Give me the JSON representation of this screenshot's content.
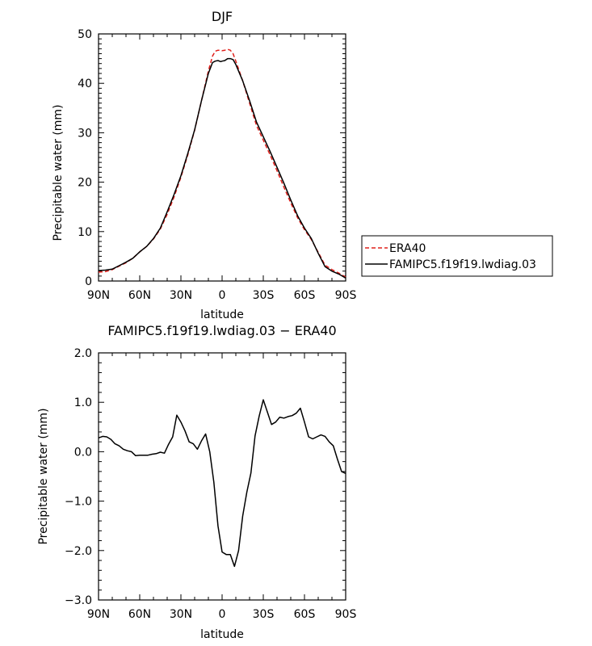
{
  "chart_data": [
    {
      "type": "line",
      "title": "DJF",
      "xlabel": "latitude",
      "ylabel": "Precipitable water (mm)",
      "xlim": [
        90,
        -90
      ],
      "ylim": [
        0,
        50
      ],
      "x_ticks": [
        90,
        60,
        30,
        0,
        -30,
        -60,
        -90
      ],
      "x_tick_labels": [
        "90N",
        "60N",
        "30N",
        "0",
        "30S",
        "60S",
        "90S"
      ],
      "y_ticks": [
        0,
        10,
        20,
        30,
        40,
        50
      ],
      "y_tick_labels": [
        "0",
        "10",
        "20",
        "30",
        "40",
        "50"
      ],
      "legend": "right",
      "series": [
        {
          "name": "ERA40",
          "color": "#e0201b",
          "dash": "dashed",
          "x": [
            90,
            85,
            80,
            75,
            70,
            65,
            60,
            55,
            50,
            45,
            40,
            35,
            30,
            25,
            20,
            15,
            10,
            7,
            5,
            3,
            1,
            0,
            -2,
            -4,
            -6,
            -8,
            -10,
            -15,
            -20,
            -25,
            -30,
            -35,
            -40,
            -45,
            -50,
            -55,
            -60,
            -65,
            -70,
            -75,
            -80,
            -85,
            -90
          ],
          "y": [
            1.8,
            1.9,
            2.3,
            3.0,
            3.7,
            4.6,
            5.9,
            7.0,
            8.5,
            10.5,
            13.5,
            17.0,
            21.0,
            25.5,
            30.5,
            36.5,
            42.5,
            45.5,
            46.5,
            46.7,
            46.7,
            46.6,
            46.7,
            46.9,
            46.7,
            46.0,
            44.5,
            40.5,
            36.0,
            31.5,
            28.5,
            25.5,
            22.3,
            19.0,
            15.8,
            12.8,
            10.4,
            8.4,
            5.8,
            3.2,
            2.3,
            1.6,
            0.8
          ]
        },
        {
          "name": "FAMIPC5.f19f19.lwdiag.03",
          "color": "#000000",
          "dash": "solid",
          "x": [
            90,
            85,
            80,
            75,
            70,
            65,
            60,
            55,
            50,
            45,
            40,
            35,
            30,
            25,
            20,
            15,
            10,
            7,
            5,
            3,
            1,
            0,
            -2,
            -4,
            -6,
            -8,
            -10,
            -15,
            -20,
            -25,
            -30,
            -35,
            -40,
            -45,
            -50,
            -55,
            -60,
            -65,
            -70,
            -75,
            -80,
            -85,
            -90
          ],
          "y": [
            2.1,
            2.2,
            2.4,
            3.1,
            3.8,
            4.6,
            5.9,
            7.0,
            8.6,
            10.7,
            14.0,
            17.5,
            21.3,
            25.8,
            30.6,
            36.5,
            42.0,
            44.2,
            44.5,
            44.6,
            44.4,
            44.5,
            44.6,
            45.0,
            45.0,
            44.8,
            43.8,
            40.5,
            36.5,
            32.2,
            29.2,
            26.2,
            23.0,
            19.8,
            16.4,
            13.2,
            10.7,
            8.6,
            5.6,
            2.9,
            2.0,
            1.4,
            0.6
          ]
        }
      ]
    },
    {
      "type": "line",
      "title": "FAMIPC5.f19f19.lwdiag.03 − ERA40",
      "xlabel": "latitude",
      "ylabel": "Precipitable water (mm)",
      "xlim": [
        90,
        -90
      ],
      "ylim": [
        -3.0,
        2.0
      ],
      "x_ticks": [
        90,
        60,
        30,
        0,
        -30,
        -60,
        -90
      ],
      "x_tick_labels": [
        "90N",
        "60N",
        "30N",
        "0",
        "30S",
        "60S",
        "90S"
      ],
      "y_ticks": [
        -3,
        -2,
        -1,
        0,
        1,
        2
      ],
      "y_tick_labels": [
        "−3.0",
        "−2.0",
        "−1.0",
        "0.0",
        "1.0",
        "2.0"
      ],
      "series": [
        {
          "color": "#000000",
          "dash": "solid",
          "x": [
            90,
            87,
            84,
            81,
            78,
            75,
            72,
            69,
            66,
            63,
            60,
            57,
            54,
            51,
            48,
            45,
            42,
            39,
            36,
            33,
            30,
            27,
            24,
            21,
            18,
            15,
            12,
            9,
            6,
            3,
            0,
            -3,
            -6,
            -9,
            -12,
            -15,
            -18,
            -21,
            -24,
            -27,
            -30,
            -33,
            -36,
            -39,
            -42,
            -45,
            -48,
            -51,
            -54,
            -57,
            -60,
            -63,
            -66,
            -69,
            -72,
            -75,
            -78,
            -81,
            -84,
            -87,
            -90
          ],
          "y": [
            0.28,
            0.31,
            0.3,
            0.25,
            0.16,
            0.12,
            0.05,
            0.02,
            0.0,
            -0.08,
            -0.07,
            -0.07,
            -0.07,
            -0.05,
            -0.04,
            -0.01,
            -0.03,
            0.15,
            0.3,
            0.74,
            0.6,
            0.42,
            0.2,
            0.16,
            0.05,
            0.22,
            0.36,
            0.0,
            -0.62,
            -1.5,
            -2.03,
            -2.08,
            -2.08,
            -2.32,
            -2.0,
            -1.3,
            -0.82,
            -0.43,
            0.32,
            0.72,
            1.05,
            0.8,
            0.55,
            0.6,
            0.7,
            0.68,
            0.71,
            0.73,
            0.78,
            0.88,
            0.6,
            0.3,
            0.26,
            0.3,
            0.34,
            0.31,
            0.2,
            0.12,
            -0.15,
            -0.4,
            -0.44
          ]
        }
      ]
    }
  ]
}
